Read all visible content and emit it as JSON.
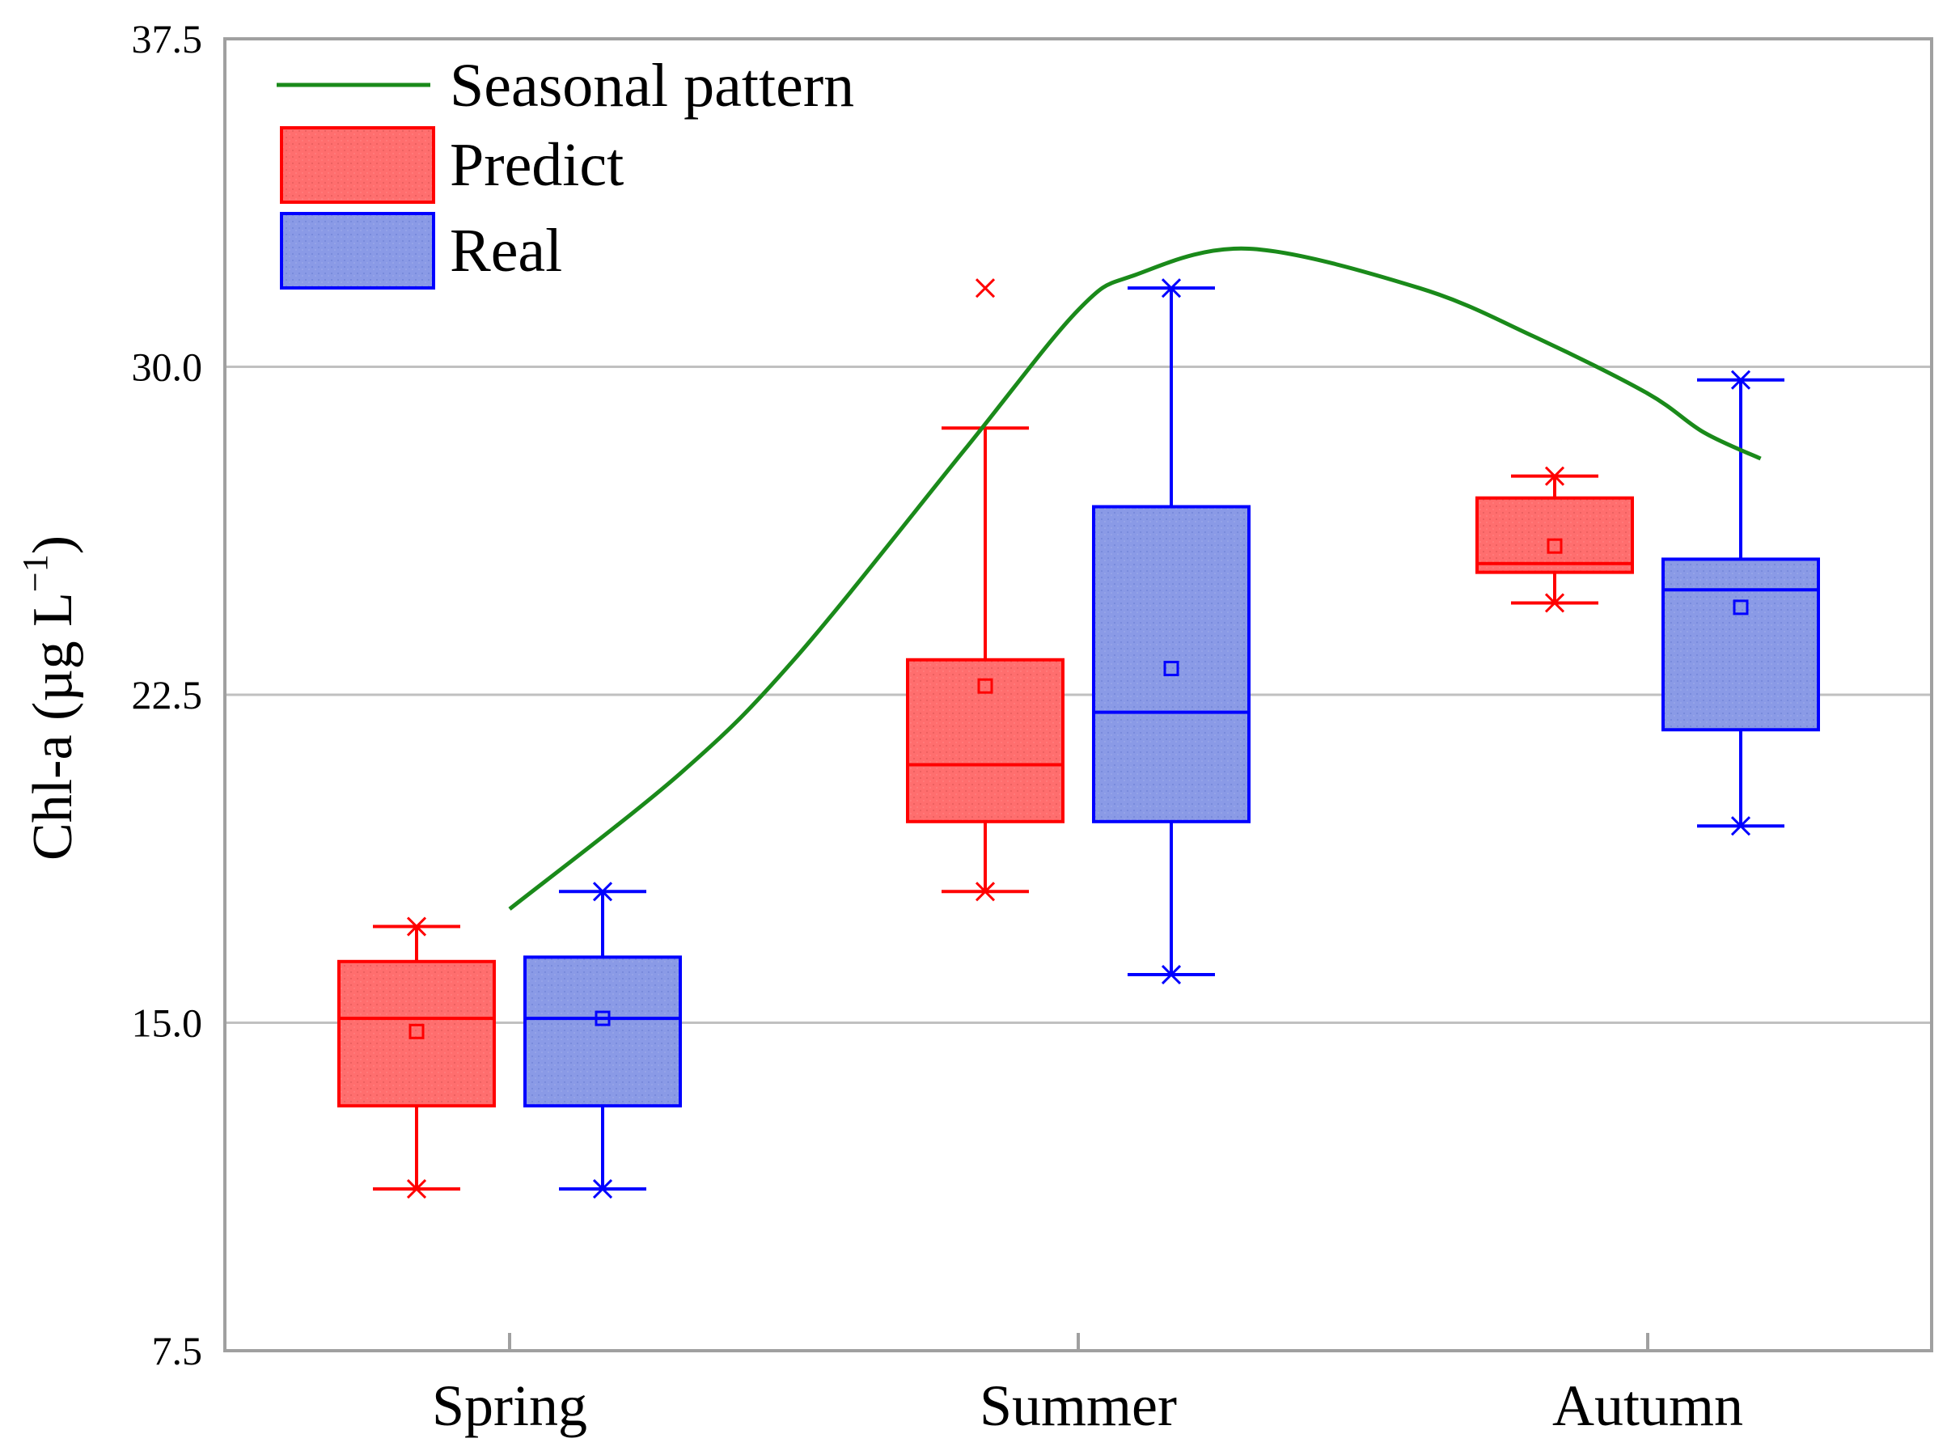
{
  "chart_data": {
    "type": "box",
    "title": "",
    "xlabel": "",
    "ylabel": "Chl-a (µg L",
    "ylabel_sup": "−1",
    "ylabel_close": ")",
    "ylim": [
      7.5,
      37.5
    ],
    "yticks": [
      "7.5",
      "15.0",
      "22.5",
      "30.0",
      "37.5"
    ],
    "ytick_values": [
      7.5,
      15.0,
      22.5,
      30.0,
      37.5
    ],
    "grid": true,
    "legend_position": "top-left",
    "categories": [
      "Spring",
      "Summer",
      "Autumn"
    ],
    "series": [
      {
        "name": "Predict",
        "color": "#ff0000",
        "fill": "#ff6e6e",
        "boxes": [
          {
            "category": "Spring",
            "min": 11.2,
            "q1": 13.1,
            "median": 15.1,
            "q3": 16.4,
            "max": 17.2,
            "mean": 14.8,
            "low_mark": 11.2,
            "high_mark": 17.2
          },
          {
            "category": "Summer",
            "min": 18.0,
            "q1": 19.6,
            "median": 20.9,
            "q3": 23.3,
            "max": 28.6,
            "mean": 22.7,
            "low_mark": 18.0,
            "high_mark": 31.8
          },
          {
            "category": "Autumn",
            "min": 24.6,
            "q1": 25.3,
            "median": 25.5,
            "q3": 27.0,
            "max": 27.5,
            "mean": 25.9,
            "low_mark": 24.6,
            "high_mark": 27.5
          }
        ]
      },
      {
        "name": "Real",
        "color": "#0000ff",
        "fill": "#8a9ae6",
        "boxes": [
          {
            "category": "Spring",
            "min": 11.2,
            "q1": 13.1,
            "median": 15.1,
            "q3": 16.5,
            "max": 18.0,
            "mean": 15.1,
            "low_mark": 11.2,
            "high_mark": 18.0
          },
          {
            "category": "Summer",
            "min": 16.1,
            "q1": 19.6,
            "median": 22.1,
            "q3": 26.8,
            "max": 31.8,
            "mean": 23.1,
            "low_mark": 16.1,
            "high_mark": 31.8
          },
          {
            "category": "Autumn",
            "min": 19.5,
            "q1": 21.7,
            "median": 24.9,
            "q3": 25.6,
            "max": 29.7,
            "mean": 24.5,
            "low_mark": 19.5,
            "high_mark": 29.7
          }
        ]
      }
    ],
    "line_series": {
      "name": "Seasonal pattern",
      "color": "#1a8a1a",
      "points": [
        {
          "x": 0.0,
          "y": 17.6
        },
        {
          "x": 0.3,
          "y": 20.7
        },
        {
          "x": 0.5,
          "y": 23.3
        },
        {
          "x": 0.8,
          "y": 28.1
        },
        {
          "x": 1.0,
          "y": 31.3
        },
        {
          "x": 1.1,
          "y": 32.1
        },
        {
          "x": 1.3,
          "y": 32.7
        },
        {
          "x": 1.6,
          "y": 31.8
        },
        {
          "x": 1.8,
          "y": 30.7
        },
        {
          "x": 2.0,
          "y": 29.4
        },
        {
          "x": 2.1,
          "y": 28.5
        },
        {
          "x": 2.2,
          "y": 27.9
        }
      ]
    },
    "legend": [
      {
        "name": "Seasonal pattern",
        "kind": "line"
      },
      {
        "name": "Predict",
        "kind": "box"
      },
      {
        "name": "Real",
        "kind": "box"
      }
    ]
  }
}
